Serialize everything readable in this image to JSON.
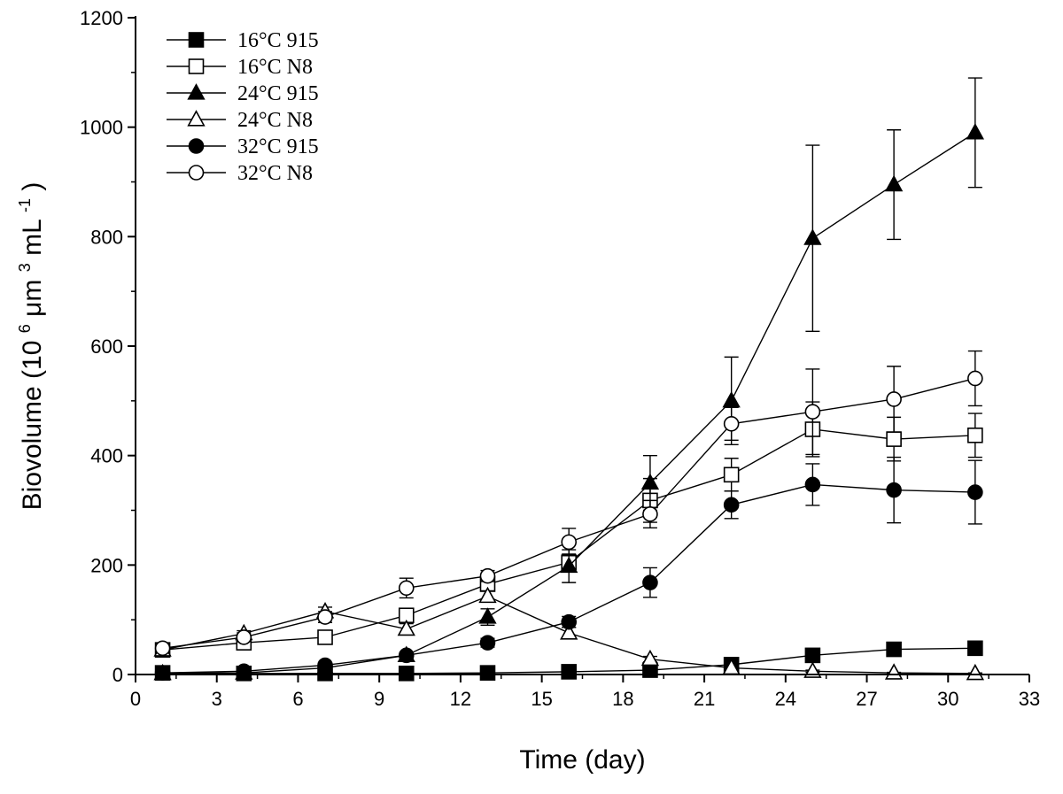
{
  "chart_data": {
    "type": "line",
    "xlabel": "Time (day)",
    "ylabel": {
      "base": "Biovolume (10",
      "exp1": "6",
      "mid": " μm",
      "exp2": "3",
      "unit": " mL",
      "exp3": "-1",
      "end": ")"
    },
    "xlim": [
      0,
      33
    ],
    "ylim": [
      0,
      1200
    ],
    "xticks": [
      0,
      3,
      6,
      9,
      12,
      15,
      18,
      21,
      24,
      27,
      30,
      33
    ],
    "yticks": [
      0,
      200,
      400,
      600,
      800,
      1000,
      1200
    ],
    "grid": false,
    "legend_position": "top-left",
    "x": [
      1,
      4,
      7,
      10,
      13,
      16,
      19,
      22,
      25,
      28,
      31
    ],
    "series": [
      {
        "name": "16°C 915",
        "marker": "square",
        "fill": "filled",
        "values": [
          3,
          2,
          2,
          2,
          3,
          5,
          8,
          18,
          35,
          46,
          48
        ],
        "errors": [
          0,
          0,
          0,
          0,
          0,
          0,
          0,
          0,
          0,
          0,
          0
        ]
      },
      {
        "name": "16°C N8",
        "marker": "square",
        "fill": "open",
        "values": [
          45,
          58,
          68,
          108,
          165,
          205,
          318,
          365,
          448,
          430,
          437
        ],
        "errors": [
          8,
          8,
          8,
          10,
          12,
          15,
          40,
          30,
          50,
          40,
          40
        ]
      },
      {
        "name": "24°C 915",
        "marker": "triangle",
        "fill": "filled",
        "values": [
          2,
          3,
          12,
          35,
          105,
          198,
          350,
          500,
          797,
          895,
          990
        ],
        "errors": [
          0,
          0,
          3,
          5,
          15,
          30,
          50,
          80,
          170,
          100,
          100
        ]
      },
      {
        "name": "24°C N8",
        "marker": "triangle",
        "fill": "open",
        "values": [
          45,
          75,
          115,
          83,
          143,
          76,
          28,
          12,
          6,
          3,
          2
        ],
        "errors": [
          5,
          5,
          8,
          10,
          10,
          10,
          5,
          3,
          2,
          1,
          1
        ]
      },
      {
        "name": "32°C 915",
        "marker": "circle",
        "fill": "filled",
        "values": [
          3,
          6,
          17,
          35,
          58,
          96,
          168,
          310,
          347,
          337,
          333
        ],
        "errors": [
          0,
          2,
          3,
          5,
          8,
          10,
          27,
          25,
          38,
          60,
          58
        ]
      },
      {
        "name": "32°C N8",
        "marker": "circle",
        "fill": "open",
        "values": [
          48,
          68,
          105,
          158,
          180,
          242,
          293,
          458,
          480,
          503,
          541
        ],
        "errors": [
          5,
          8,
          10,
          18,
          10,
          25,
          25,
          30,
          78,
          60,
          50
        ]
      }
    ]
  }
}
